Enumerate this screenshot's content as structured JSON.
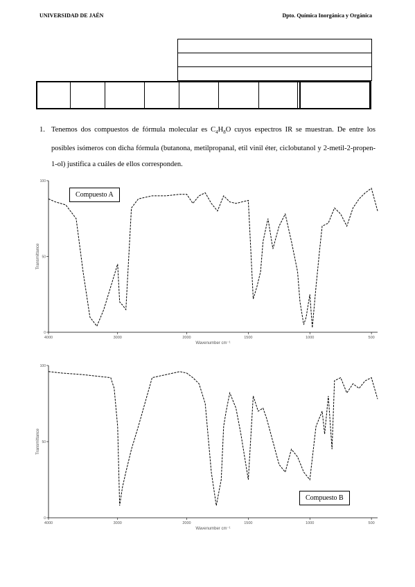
{
  "header": {
    "left": "UNIVERSIDAD DE JAÉN",
    "right": "Dpto. Química Inorgánica y Orgánica"
  },
  "question": {
    "number": "1.",
    "text_before_formula": "Tenemos dos compuestos de fórmula molecular es ",
    "formula_C": "C",
    "formula_C_sub": "4",
    "formula_H": "H",
    "formula_H_sub": "8",
    "formula_O": "O",
    "text_after_formula": " cuyos espectros IR se muestran. De entre los posibles isómeros con dicha fórmula (butanona, metilpropanal, etil vinil éter, ciclobutanol y 2-metil-2-propen-1-ol) justifica a cuáles de ellos corresponden."
  },
  "spectrum_A": {
    "label": "Compuesto A",
    "xlabel": "Wavenumber cm⁻¹",
    "ylabel": "Transmittance",
    "x_ticks": [
      "4000",
      "3000",
      "2000",
      "1500",
      "1000",
      "500"
    ],
    "y_ticks": [
      "100",
      "50",
      "0"
    ]
  },
  "spectrum_B": {
    "label": "Compuesto B",
    "xlabel": "Wavenumber cm⁻¹",
    "ylabel": "Transmittance",
    "x_ticks": [
      "4000",
      "3000",
      "2000",
      "1500",
      "1000",
      "500"
    ],
    "y_ticks": [
      "100",
      "50",
      "0"
    ]
  },
  "chart_data": [
    {
      "type": "line",
      "name": "Compuesto A",
      "xlim": [
        4000,
        450
      ],
      "ylim": [
        0,
        100
      ],
      "x": [
        4000,
        3900,
        3750,
        3600,
        3500,
        3400,
        3300,
        3200,
        3100,
        3000,
        2970,
        2930,
        2880,
        2800,
        2700,
        2500,
        2300,
        2100,
        2000,
        1950,
        1900,
        1850,
        1800,
        1750,
        1700,
        1650,
        1600,
        1500,
        1460,
        1430,
        1400,
        1380,
        1340,
        1300,
        1250,
        1200,
        1150,
        1100,
        1080,
        1050,
        1030,
        1000,
        980,
        950,
        920,
        900,
        850,
        800,
        750,
        700,
        650,
        600,
        550,
        500,
        450
      ],
      "y": [
        88,
        86,
        84,
        75,
        40,
        10,
        4,
        15,
        30,
        45,
        20,
        18,
        15,
        82,
        88,
        90,
        90,
        91,
        91,
        85,
        90,
        92,
        85,
        80,
        90,
        86,
        85,
        87,
        22,
        30,
        40,
        60,
        75,
        55,
        70,
        78,
        60,
        40,
        20,
        5,
        10,
        25,
        3,
        30,
        55,
        70,
        72,
        82,
        78,
        70,
        82,
        88,
        92,
        95,
        80
      ]
    },
    {
      "type": "line",
      "name": "Compuesto B",
      "xlim": [
        4000,
        450
      ],
      "ylim": [
        0,
        100
      ],
      "x": [
        4000,
        3800,
        3500,
        3300,
        3100,
        3050,
        3000,
        2970,
        2930,
        2880,
        2800,
        2700,
        2500,
        2300,
        2200,
        2100,
        2000,
        1950,
        1900,
        1850,
        1800,
        1760,
        1720,
        1700,
        1680,
        1650,
        1600,
        1560,
        1500,
        1460,
        1420,
        1380,
        1350,
        1300,
        1250,
        1200,
        1150,
        1100,
        1050,
        1000,
        950,
        900,
        880,
        850,
        820,
        800,
        750,
        700,
        650,
        600,
        550,
        500,
        450
      ],
      "y": [
        96,
        95,
        94,
        93,
        92,
        85,
        60,
        8,
        20,
        30,
        45,
        60,
        92,
        94,
        95,
        96,
        95,
        92,
        88,
        75,
        30,
        8,
        25,
        60,
        70,
        82,
        72,
        55,
        25,
        80,
        70,
        72,
        65,
        50,
        35,
        30,
        45,
        40,
        30,
        25,
        60,
        70,
        55,
        80,
        45,
        90,
        92,
        82,
        88,
        85,
        90,
        92,
        78
      ]
    }
  ]
}
